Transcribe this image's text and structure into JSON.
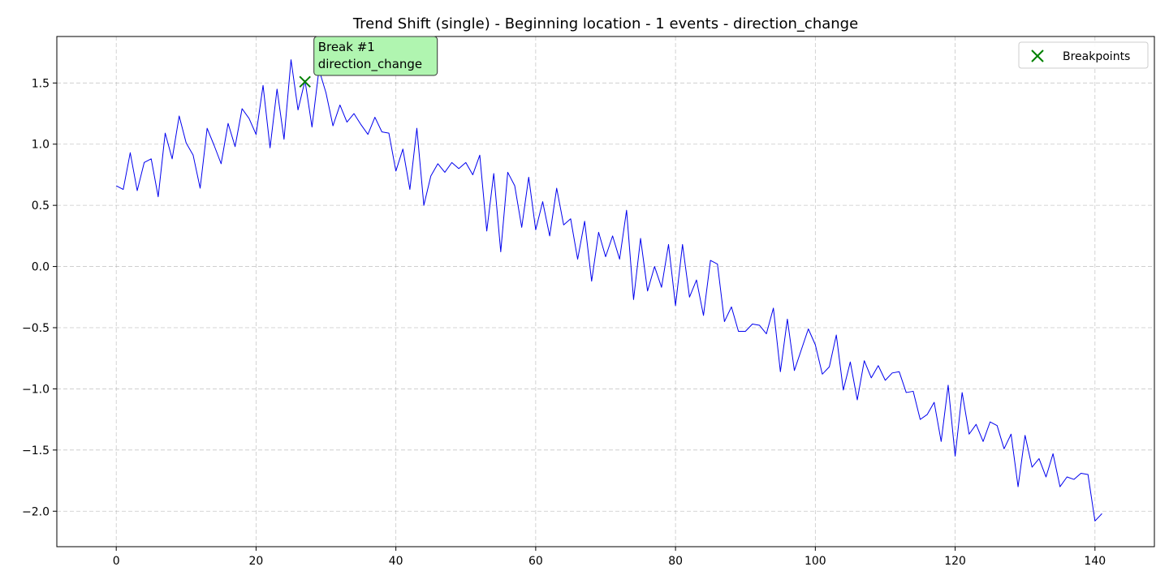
{
  "chart_data": {
    "type": "line",
    "title": "Trend Shift (single) - Beginning location - 1 events - direction_change",
    "xlabel": "",
    "ylabel": "",
    "xlim": [
      -8.5,
      148.5
    ],
    "ylim": [
      -2.29,
      1.88
    ],
    "xticks": [
      0,
      20,
      40,
      60,
      80,
      100,
      120,
      140
    ],
    "yticks": [
      -2.0,
      -1.5,
      -1.0,
      -0.5,
      0.0,
      0.5,
      1.0,
      1.5
    ],
    "ytick_labels": [
      "−2.0",
      "−1.5",
      "−1.0",
      "−0.5",
      "0.0",
      "0.5",
      "1.0",
      "1.5"
    ],
    "grid": true,
    "legend_placement": "top-right",
    "series": [
      {
        "color": "#0000ee",
        "x_start": 0,
        "values": [
          0.66,
          0.63,
          0.93,
          0.62,
          0.85,
          0.88,
          0.57,
          1.09,
          0.88,
          1.23,
          1.01,
          0.91,
          0.64,
          1.13,
          0.99,
          0.84,
          1.17,
          0.98,
          1.29,
          1.21,
          1.08,
          1.48,
          0.97,
          1.45,
          1.04,
          1.69,
          1.28,
          1.52,
          1.14,
          1.61,
          1.42,
          1.15,
          1.32,
          1.18,
          1.25,
          1.16,
          1.08,
          1.22,
          1.1,
          1.09,
          0.78,
          0.96,
          0.63,
          1.13,
          0.5,
          0.74,
          0.84,
          0.77,
          0.85,
          0.8,
          0.85,
          0.75,
          0.91,
          0.29,
          0.76,
          0.12,
          0.77,
          0.66,
          0.32,
          0.73,
          0.3,
          0.53,
          0.25,
          0.64,
          0.34,
          0.39,
          0.06,
          0.37,
          -0.12,
          0.28,
          0.08,
          0.25,
          0.06,
          0.46,
          -0.27,
          0.23,
          -0.2,
          0.0,
          -0.17,
          0.18,
          -0.32,
          0.18,
          -0.25,
          -0.11,
          -0.4,
          0.05,
          0.02,
          -0.45,
          -0.33,
          -0.53,
          -0.53,
          -0.47,
          -0.48,
          -0.55,
          -0.34,
          -0.86,
          -0.43,
          -0.85,
          -0.68,
          -0.51,
          -0.64,
          -0.88,
          -0.82,
          -0.56,
          -1.01,
          -0.78,
          -1.09,
          -0.77,
          -0.91,
          -0.81,
          -0.93,
          -0.87,
          -0.86,
          -1.03,
          -1.02,
          -1.25,
          -1.21,
          -1.11,
          -1.43,
          -0.97,
          -1.55,
          -1.03,
          -1.37,
          -1.29,
          -1.43,
          -1.27,
          -1.3,
          -1.49,
          -1.37,
          -1.8,
          -1.38,
          -1.64,
          -1.57,
          -1.72,
          -1.53,
          -1.8,
          -1.72,
          -1.74,
          -1.69,
          -1.7,
          -2.08,
          -2.02
        ]
      }
    ],
    "breakpoints": {
      "legend_label": "Breakpoints",
      "color": "#008000",
      "points": [
        {
          "x": 27,
          "y": 1.51,
          "label_line1": "Break #1",
          "label_line2": "direction_change"
        }
      ]
    },
    "annotation_box_color": "#b0f5b0"
  }
}
